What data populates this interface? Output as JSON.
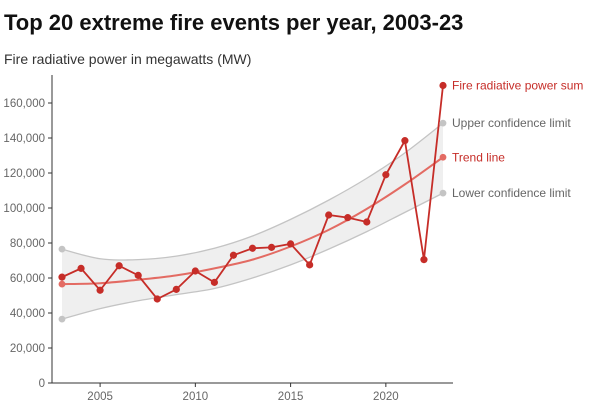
{
  "title": "Top 20 extreme fire events per year, 2003-23",
  "subtitle": "Fire radiative power in megawatts (MW)",
  "colors": {
    "series": "#c62d28",
    "trend": "#e36b63",
    "confidence": "#c4c4c4",
    "band_fill": "#efefef",
    "axis": "#333333",
    "tick_text": "#666666"
  },
  "chart_data": {
    "type": "line",
    "title": "Top 20 extreme fire events per year, 2003-23",
    "subtitle": "Fire radiative power in megawatts (MW)",
    "xlabel": "",
    "ylabel": "",
    "xlim": [
      2003,
      2023
    ],
    "ylim": [
      0,
      170000
    ],
    "x_ticks": [
      2005,
      2010,
      2015,
      2020
    ],
    "y_ticks": [
      0,
      20000,
      40000,
      60000,
      80000,
      100000,
      120000,
      140000,
      160000
    ],
    "y_tick_labels": [
      "0",
      "20,000",
      "40,000",
      "60,000",
      "80,000",
      "100,000",
      "120,000",
      "140,000",
      "160,000"
    ],
    "grid": false,
    "legend_position": "right",
    "series": [
      {
        "name": "Fire radiative power sum",
        "x": [
          2003,
          2004,
          2005,
          2006,
          2007,
          2008,
          2009,
          2010,
          2011,
          2012,
          2013,
          2014,
          2015,
          2016,
          2017,
          2018,
          2019,
          2020,
          2021,
          2022,
          2023
        ],
        "values": [
          60500,
          65500,
          53000,
          67000,
          61500,
          48000,
          53500,
          64000,
          57500,
          73000,
          77000,
          77500,
          79500,
          67500,
          96000,
          94500,
          92000,
          119000,
          138500,
          70500,
          170000
        ]
      },
      {
        "name": "Trend line",
        "x": [
          2003,
          2005,
          2007,
          2009,
          2011,
          2013,
          2015,
          2017,
          2019,
          2021,
          2023
        ],
        "values": [
          56500,
          57000,
          59000,
          61500,
          65500,
          70500,
          78000,
          87500,
          99500,
          113500,
          129000
        ]
      },
      {
        "name": "Upper confidence limit",
        "x": [
          2003,
          2005,
          2007,
          2009,
          2011,
          2013,
          2015,
          2017,
          2019,
          2021,
          2023
        ],
        "values": [
          76500,
          71000,
          70500,
          72500,
          77000,
          84000,
          93500,
          104500,
          117000,
          131500,
          148500
        ]
      },
      {
        "name": "Lower confidence limit",
        "x": [
          2003,
          2005,
          2007,
          2009,
          2011,
          2013,
          2015,
          2017,
          2019,
          2021,
          2023
        ],
        "values": [
          36500,
          42500,
          47000,
          50500,
          54000,
          60000,
          67500,
          76500,
          86500,
          97500,
          108500
        ]
      }
    ]
  }
}
